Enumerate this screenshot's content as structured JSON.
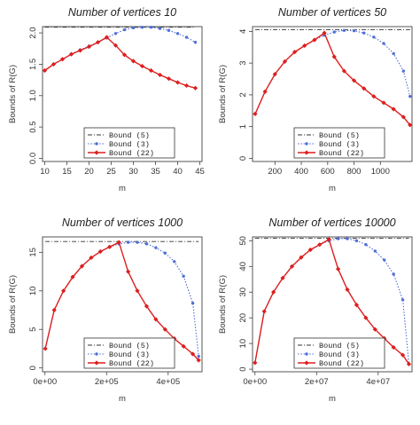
{
  "colors": {
    "bound5": "#333333",
    "bound3": "#4f6fd6",
    "bound22": "#dd1f1f"
  },
  "legend": {
    "labels": [
      "Bound (5)",
      "Bound (3)",
      "Bound (22)"
    ],
    "placement": "bottom-center"
  },
  "chart_data": [
    {
      "type": "line",
      "title": "Number of vertices 10",
      "xlabel": "m",
      "ylabel": "Bounds of R(G)",
      "xlim": [
        9.5,
        45.5
      ],
      "ylim": [
        -0.05,
        2.1
      ],
      "xticks": [
        10,
        15,
        20,
        25,
        30,
        35,
        40,
        45
      ],
      "xtick_labels": [
        "10",
        "15",
        "20",
        "25",
        "30",
        "35",
        "40",
        "45"
      ],
      "yticks": [
        0.0,
        0.5,
        1.0,
        1.5,
        2.0
      ],
      "ytick_labels": [
        "0.0",
        "0.5",
        "1.0",
        "1.5",
        "2.0"
      ],
      "series": [
        {
          "name": "Bound (5)",
          "style": "dashdot",
          "x": [
            10,
            44
          ],
          "y": [
            2.09,
            2.09
          ]
        },
        {
          "name": "Bound (3)",
          "style": "dotted-points",
          "x": [
            10,
            12,
            14,
            16,
            18,
            20,
            22,
            24,
            26,
            28,
            30,
            32,
            34,
            36,
            38,
            40,
            42,
            44
          ],
          "y": [
            1.4,
            1.5,
            1.58,
            1.66,
            1.73,
            1.79,
            1.85,
            1.92,
            1.99,
            2.05,
            2.08,
            2.09,
            2.09,
            2.07,
            2.04,
            1.99,
            1.93,
            1.85
          ]
        },
        {
          "name": "Bound (22)",
          "style": "solid-points",
          "x": [
            10,
            12,
            14,
            16,
            18,
            20,
            22,
            24,
            26,
            28,
            30,
            32,
            34,
            36,
            38,
            40,
            42,
            44
          ],
          "y": [
            1.4,
            1.5,
            1.58,
            1.66,
            1.72,
            1.78,
            1.85,
            1.93,
            1.8,
            1.65,
            1.55,
            1.47,
            1.4,
            1.33,
            1.27,
            1.21,
            1.16,
            1.12
          ]
        }
      ]
    },
    {
      "type": "line",
      "title": "Number of vertices 50",
      "xlabel": "m",
      "ylabel": "Bounds of R(G)",
      "xlim": [
        30,
        1240
      ],
      "ylim": [
        -0.1,
        4.15
      ],
      "xticks": [
        200,
        400,
        600,
        800,
        1000
      ],
      "xtick_labels": [
        "200",
        "400",
        "600",
        "800",
        "1000"
      ],
      "yticks": [
        0,
        1,
        2,
        3,
        4
      ],
      "ytick_labels": [
        "0",
        "1",
        "2",
        "3",
        "4"
      ],
      "series": [
        {
          "name": "Bound (5)",
          "style": "dashdot",
          "x": [
            50,
            1225
          ],
          "y": [
            4.05,
            4.05
          ]
        },
        {
          "name": "Bound (3)",
          "style": "dotted-points",
          "x": [
            50,
            125,
            200,
            275,
            350,
            425,
            500,
            575,
            650,
            725,
            800,
            875,
            950,
            1025,
            1100,
            1175,
            1225
          ],
          "y": [
            1.4,
            2.1,
            2.65,
            3.05,
            3.35,
            3.55,
            3.73,
            3.88,
            3.98,
            4.03,
            4.02,
            3.95,
            3.82,
            3.62,
            3.3,
            2.75,
            1.95
          ]
        },
        {
          "name": "Bound (22)",
          "style": "solid-points",
          "x": [
            50,
            125,
            200,
            275,
            350,
            425,
            500,
            575,
            650,
            725,
            800,
            875,
            950,
            1025,
            1100,
            1175,
            1225
          ],
          "y": [
            1.4,
            2.1,
            2.65,
            3.05,
            3.35,
            3.55,
            3.73,
            3.95,
            3.2,
            2.75,
            2.45,
            2.2,
            1.95,
            1.75,
            1.55,
            1.3,
            1.05
          ]
        }
      ]
    },
    {
      "type": "line",
      "title": "Number of vertices 1000",
      "xlabel": "m",
      "ylabel": "Bounds of R(G)",
      "xlim": [
        -8000,
        510000
      ],
      "ylim": [
        -0.5,
        17
      ],
      "xticks": [
        0,
        200000,
        400000
      ],
      "xtick_labels": [
        "0e+00",
        "2e+05",
        "4e+05"
      ],
      "yticks": [
        0,
        5,
        10,
        15
      ],
      "ytick_labels": [
        "0",
        "5",
        "10",
        "15"
      ],
      "series": [
        {
          "name": "Bound (5)",
          "style": "dashdot",
          "x": [
            1000,
            499000
          ],
          "y": [
            16.4,
            16.4
          ]
        },
        {
          "name": "Bound (3)",
          "style": "dotted-points",
          "x": [
            1000,
            30000,
            60000,
            90000,
            120000,
            150000,
            180000,
            210000,
            240000,
            270000,
            300000,
            330000,
            360000,
            390000,
            420000,
            450000,
            480000,
            499000
          ],
          "y": [
            2.5,
            7.5,
            10.0,
            11.8,
            13.2,
            14.3,
            15.1,
            15.7,
            16.1,
            16.3,
            16.3,
            16.1,
            15.6,
            14.9,
            13.8,
            11.9,
            8.4,
            1.5
          ]
        },
        {
          "name": "Bound (22)",
          "style": "solid-points",
          "x": [
            1000,
            30000,
            60000,
            90000,
            120000,
            150000,
            180000,
            210000,
            240000,
            270000,
            300000,
            330000,
            360000,
            390000,
            420000,
            450000,
            480000,
            499000
          ],
          "y": [
            2.5,
            7.5,
            10.0,
            11.8,
            13.2,
            14.3,
            15.1,
            15.7,
            16.3,
            12.5,
            10.0,
            8.0,
            6.3,
            5.0,
            3.8,
            2.8,
            1.8,
            1.0
          ]
        }
      ]
    },
    {
      "type": "line",
      "title": "Number of vertices 10000",
      "xlabel": "m",
      "ylabel": "Bounds of R(G)",
      "xlim": [
        -800000,
        51000000
      ],
      "ylim": [
        -1,
        51.5
      ],
      "xticks": [
        0,
        20000000,
        40000000
      ],
      "xtick_labels": [
        "0e+00",
        "2e+07",
        "4e+07"
      ],
      "yticks": [
        0,
        10,
        20,
        30,
        40,
        50
      ],
      "ytick_labels": [
        "0",
        "10",
        "20",
        "30",
        "40",
        "50"
      ],
      "series": [
        {
          "name": "Bound (5)",
          "style": "dashdot",
          "x": [
            10000,
            49990000
          ],
          "y": [
            51.0,
            51.0
          ]
        },
        {
          "name": "Bound (3)",
          "style": "dotted-points",
          "x": [
            10000,
            3000000,
            6000000,
            9000000,
            12000000,
            15000000,
            18000000,
            21000000,
            24000000,
            27000000,
            30000000,
            33000000,
            36000000,
            39000000,
            42000000,
            45000000,
            48000000,
            49990000
          ],
          "y": [
            2.5,
            22.5,
            30.0,
            35.5,
            40.0,
            43.5,
            46.5,
            48.5,
            50.0,
            50.8,
            50.8,
            50.0,
            48.5,
            46.0,
            42.5,
            37.0,
            27.0,
            2.0
          ]
        },
        {
          "name": "Bound (22)",
          "style": "solid-points",
          "x": [
            10000,
            3000000,
            6000000,
            9000000,
            12000000,
            15000000,
            18000000,
            21000000,
            24000000,
            27000000,
            30000000,
            33000000,
            36000000,
            39000000,
            42000000,
            45000000,
            48000000,
            49990000
          ],
          "y": [
            2.5,
            22.5,
            30.0,
            35.5,
            40.0,
            43.5,
            46.5,
            48.5,
            50.5,
            39.0,
            31.0,
            25.0,
            20.0,
            15.5,
            12.0,
            8.5,
            5.5,
            2.0
          ]
        }
      ]
    }
  ]
}
